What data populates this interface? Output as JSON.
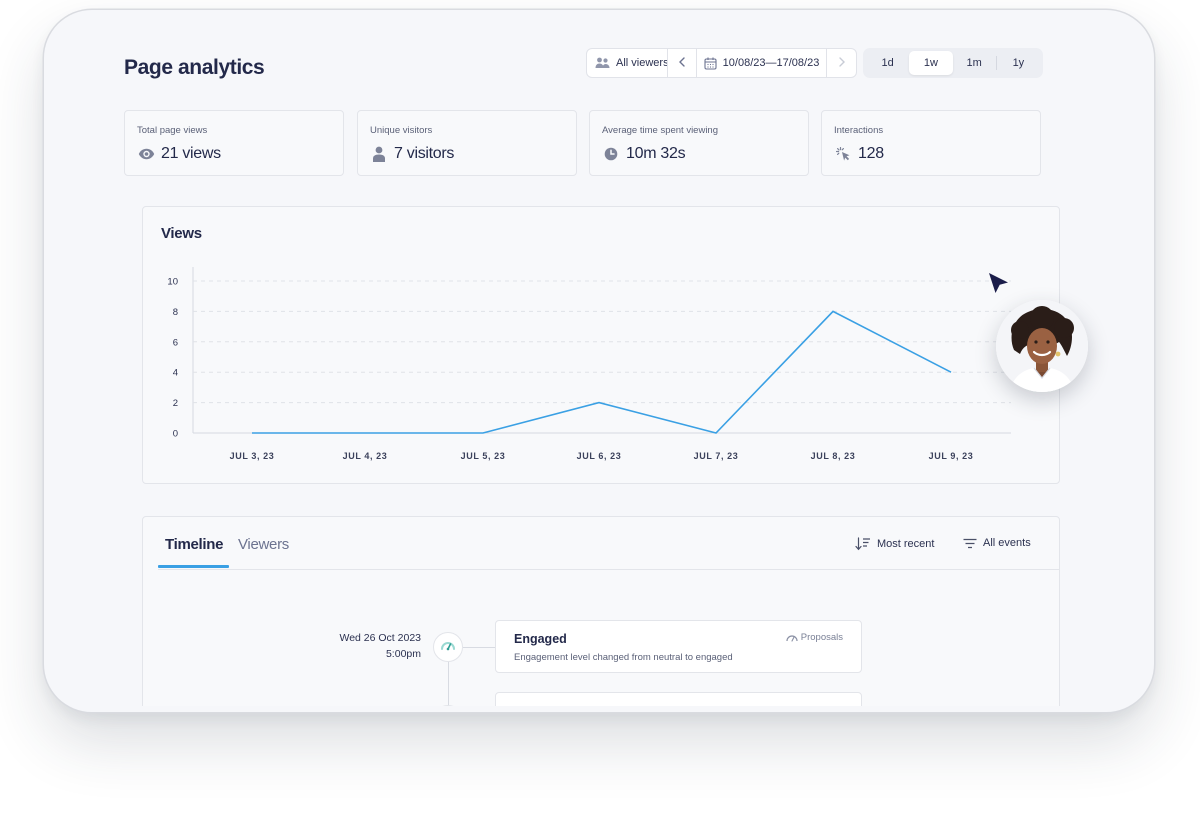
{
  "header": {
    "title": "Page analytics",
    "viewer_filter": "All viewers",
    "date_range": "10/08/23—17/08/23",
    "range_options": [
      {
        "label": "1d",
        "active": false
      },
      {
        "label": "1w",
        "active": true
      },
      {
        "label": "1m",
        "active": false
      },
      {
        "label": "1y",
        "active": false
      }
    ]
  },
  "stats": [
    {
      "label": "Total page views",
      "value": "21 views",
      "icon": "eye-icon"
    },
    {
      "label": "Unique visitors",
      "value": "7 visitors",
      "icon": "person-icon"
    },
    {
      "label": "Average time spent viewing",
      "value": "10m 32s",
      "icon": "clock-icon"
    },
    {
      "label": "Interactions",
      "value": "128",
      "icon": "click-icon"
    }
  ],
  "views_chart": {
    "title": "Views"
  },
  "chart_data": {
    "type": "line",
    "title": "Views",
    "categories": [
      "JUL 3, 23",
      "JUL 4, 23",
      "JUL 5, 23",
      "JUL 6, 23",
      "JUL 7, 23",
      "JUL 8, 23",
      "JUL 9, 23"
    ],
    "values": [
      0,
      0,
      0,
      2,
      0,
      8,
      4
    ],
    "yticks": [
      0,
      2,
      4,
      6,
      8,
      10
    ],
    "ylim": [
      0,
      10
    ],
    "grid": true,
    "line_color": "#3aa0e4"
  },
  "timeline": {
    "tabs": [
      {
        "label": "Timeline",
        "active": true
      },
      {
        "label": "Viewers",
        "active": false
      }
    ],
    "sort_label": "Most recent",
    "filter_label": "All events",
    "events": [
      {
        "date": "Wed 26 Oct 2023",
        "time": "5:00pm",
        "title": "Engaged",
        "description": "Engagement level changed from neutral to engaged",
        "tag": "Proposals",
        "icon": "gauge-icon"
      }
    ]
  },
  "colors": {
    "accent": "#3aa0e4",
    "background": "#f6f7fa",
    "text": "#23294a"
  }
}
